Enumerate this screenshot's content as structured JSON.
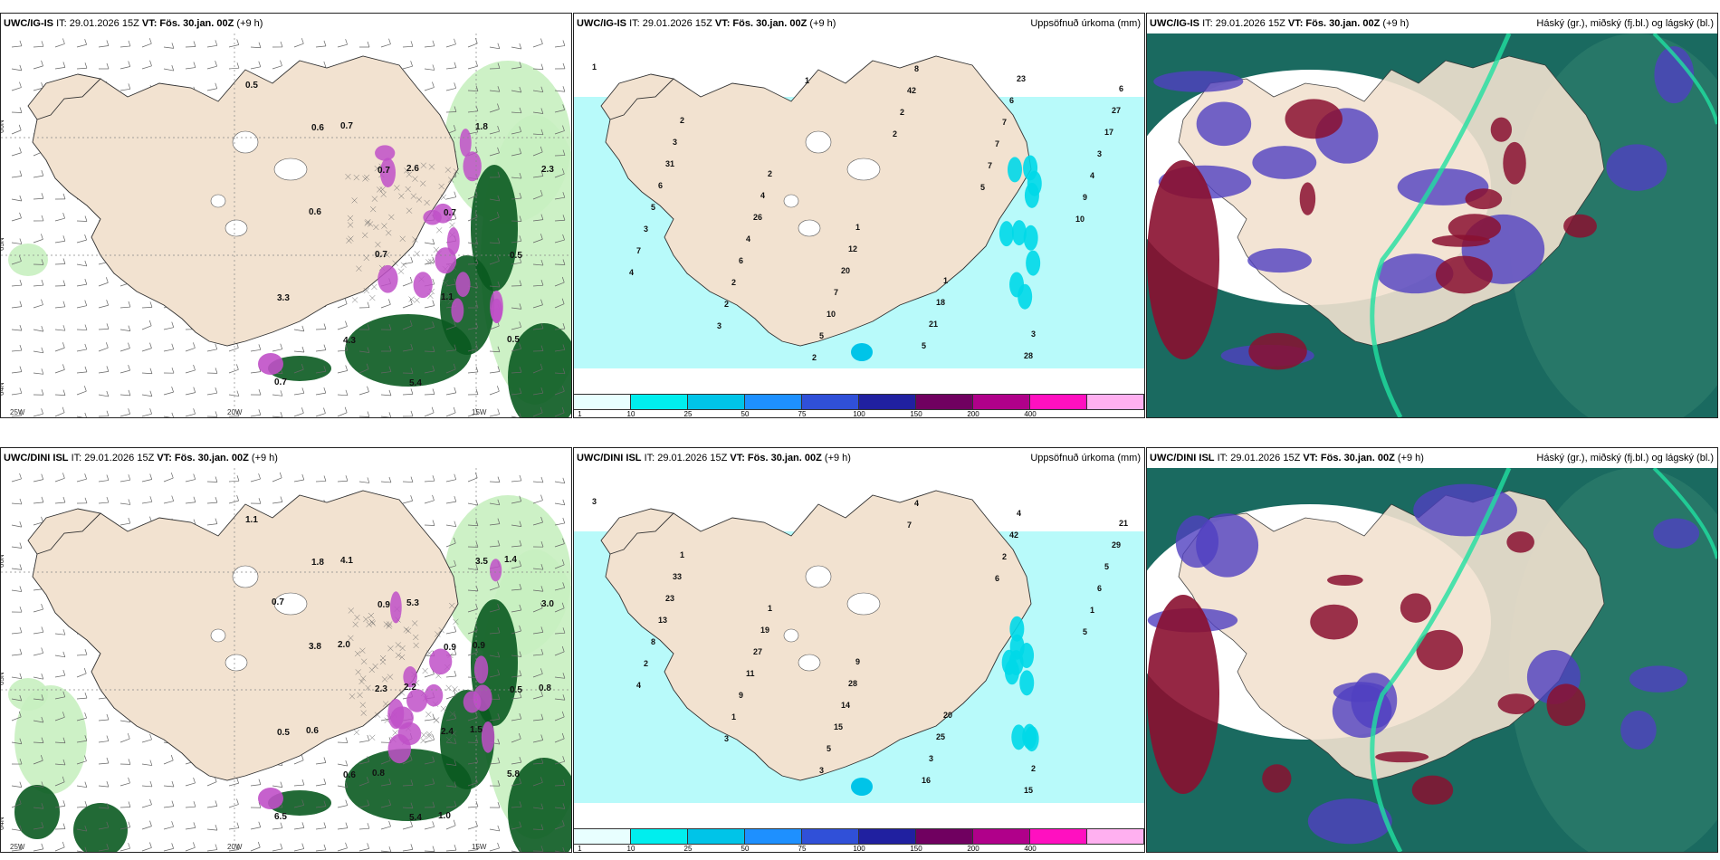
{
  "panels": [
    {
      "id": "top-left",
      "model": "UWC/IG-IS",
      "init": "IT: 29.01.2026 15Z",
      "valid_label": "VT:",
      "valid": "Fös. 30.jan. 00Z",
      "lead": "(+9 h)",
      "field": "",
      "lat_labels": [
        "66N",
        "65N",
        "64N"
      ],
      "lon_labels": [
        "25W",
        "20W",
        "15W"
      ],
      "values": [
        "0.5",
        "0.6",
        "0.7",
        "0.7",
        "0.5",
        "3.3",
        "4.3",
        "5.4",
        "1.8",
        "2.3",
        "0.6",
        "0.7",
        "1.1",
        "0.5",
        "0.7",
        "0.7",
        "2.6"
      ]
    },
    {
      "id": "top-middle",
      "model": "UWC/IG-IS",
      "init": "IT: 29.01.2026 15Z",
      "valid_label": "VT:",
      "valid": "Fös. 30.jan. 00Z",
      "lead": "(+9 h)",
      "field": "Uppsöfnuð úrkoma (mm)",
      "colorbar_labels": [
        "1",
        "10",
        "25",
        "50",
        "75",
        "100",
        "150",
        "200",
        "400"
      ],
      "colorbar_colors": [
        "#e8ffff",
        "#00eeee",
        "#00c4e8",
        "#1e90ff",
        "#3050d8",
        "#2020a0",
        "#700060",
        "#b0008a",
        "#ff10c0",
        "#ffb0f0"
      ],
      "values": [
        "1",
        "2",
        "2",
        "1",
        "1",
        "3",
        "6",
        "3",
        "4",
        "12",
        "18",
        "28",
        "27",
        "31",
        "26",
        "20",
        "21",
        "23",
        "17",
        "6",
        "4",
        "7",
        "5",
        "6",
        "3",
        "5",
        "6",
        "10",
        "8",
        "7",
        "4",
        "3",
        "2",
        "5",
        "42",
        "7",
        "9",
        "7",
        "2",
        "2",
        "2",
        "7",
        "10",
        "4",
        "3",
        "1",
        "2",
        "5"
      ]
    },
    {
      "id": "top-right",
      "model": "UWC/IG-IS",
      "init": "IT: 29.01.2026 15Z",
      "valid_label": "VT:",
      "valid": "Fös. 30.jan. 00Z",
      "lead": "(+9 h)",
      "field": "Háský (gr.), miðský (fj.bl.) og lágský (bl.)"
    },
    {
      "id": "bottom-left",
      "model": "UWC/DINI ISL",
      "init": "IT: 29.01.2026 15Z",
      "valid_label": "VT:",
      "valid": "Fös. 30.jan. 00Z",
      "lead": "(+9 h)",
      "field": "",
      "lat_labels": [
        "66N",
        "65N",
        "64N"
      ],
      "lon_labels": [
        "25W",
        "20W",
        "15W"
      ],
      "values": [
        "1.1",
        "1.8",
        "0.9",
        "0.9",
        "0.5",
        "0.5",
        "0.6",
        "5.4",
        "3.5",
        "3.0",
        "3.8",
        "2.3",
        "2.4",
        "5.8",
        "6.5",
        "4.1",
        "5.3",
        "0.9",
        "0.8",
        "0.6",
        "0.8",
        "1.0",
        "1.4",
        "0.7",
        "2.0",
        "2.2",
        "1.5"
      ]
    },
    {
      "id": "bottom-middle",
      "model": "UWC/DINI ISL",
      "init": "IT: 29.01.2026 15Z",
      "valid_label": "VT:",
      "valid": "Fös. 30.jan. 00Z",
      "lead": "(+9 h)",
      "field": "Uppsöfnuð úrkoma (mm)",
      "colorbar_labels": [
        "1",
        "10",
        "25",
        "50",
        "75",
        "100",
        "150",
        "200",
        "400"
      ],
      "colorbar_colors": [
        "#e8ffff",
        "#00eeee",
        "#00c4e8",
        "#1e90ff",
        "#3050d8",
        "#2020a0",
        "#700060",
        "#b0008a",
        "#ff10c0",
        "#ffb0f0"
      ],
      "values": [
        "3",
        "1",
        "1",
        "9",
        "20",
        "2",
        "21",
        "33",
        "19",
        "28",
        "25",
        "15",
        "29",
        "23",
        "27",
        "14",
        "3",
        "4",
        "5",
        "13",
        "11",
        "15",
        "16",
        "42",
        "6",
        "8",
        "9",
        "5",
        "4",
        "2",
        "1",
        "2",
        "1",
        "3",
        "7",
        "6",
        "5",
        "4",
        "3"
      ]
    },
    {
      "id": "bottom-right",
      "model": "UWC/DINI ISL",
      "init": "IT: 29.01.2026 15Z",
      "valid_label": "VT:",
      "valid": "Fös. 30.jan. 00Z",
      "lead": "(+9 h)",
      "field": "Háský (gr.), miðský (fj.bl.) og lágský (bl.)"
    }
  ],
  "colors": {
    "land": "#f2e2d0",
    "sea_precip_light": "#b8fafa",
    "green_light": "#c8f0c0",
    "green_dark": "#0a5a20",
    "snow_magenta": "#c050c8",
    "cloud_high": "#1a6a60",
    "cloud_mid": "#5040c0",
    "cloud_low": "#8a1030"
  }
}
